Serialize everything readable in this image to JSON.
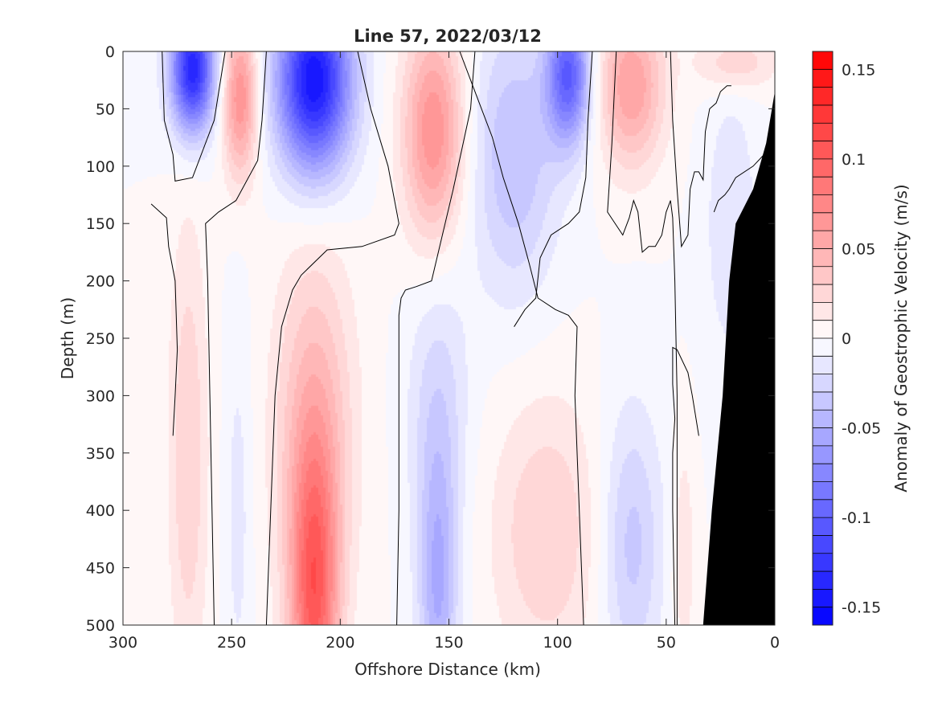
{
  "chart_data": {
    "type": "heatmap",
    "title": "Line 57, 2022/03/12",
    "xlabel": "Offshore Distance (km)",
    "ylabel": "Depth (m)",
    "colorbar_label": "Anomaly of Geostrophic Velocity (m/s)",
    "xlim": [
      300,
      0
    ],
    "ylim": [
      0,
      500
    ],
    "clim": [
      -0.16,
      0.16
    ],
    "x_ticks": [
      300,
      250,
      200,
      150,
      100,
      50,
      0
    ],
    "y_ticks": [
      0,
      50,
      100,
      150,
      200,
      250,
      300,
      350,
      400,
      450,
      500
    ],
    "colorbar_ticks": [
      0.15,
      0.1,
      0.05,
      0,
      -0.05,
      -0.1,
      -0.15
    ],
    "colorbar_tick_labels": [
      "0.15",
      "0.1",
      "0.05",
      "0",
      "-0.05",
      "-0.1",
      "-0.15"
    ],
    "colormap": {
      "negative": "#0000ff",
      "zero": "#ffffff",
      "positive": "#ff0000"
    },
    "bathymetry_color": "#000000",
    "cores": [
      {
        "x": 268,
        "depth": 15,
        "amp": -0.14,
        "hw": 10,
        "vd": 55
      },
      {
        "x": 246,
        "depth": 40,
        "amp": 0.07,
        "hw": 8,
        "vd": 70
      },
      {
        "x": 212,
        "depth": 25,
        "amp": -0.15,
        "hw": 17,
        "vd": 80
      },
      {
        "x": 157,
        "depth": 70,
        "amp": 0.07,
        "hw": 14,
        "vd": 95
      },
      {
        "x": 95,
        "depth": 20,
        "amp": -0.1,
        "hw": 10,
        "vd": 60
      },
      {
        "x": 120,
        "depth": 90,
        "amp": -0.04,
        "hw": 20,
        "vd": 120
      },
      {
        "x": 66,
        "depth": 30,
        "amp": 0.06,
        "hw": 15,
        "vd": 70
      },
      {
        "x": 18,
        "depth": 10,
        "amp": 0.03,
        "hw": 18,
        "vd": 25
      },
      {
        "x": 20,
        "depth": 150,
        "amp": -0.02,
        "hw": 12,
        "vd": 120
      },
      {
        "x": 212,
        "depth": 480,
        "amp": 0.09,
        "hw": 11,
        "vd": 130
      },
      {
        "x": 212,
        "depth": 330,
        "amp": 0.045,
        "hw": 18,
        "vd": 160
      },
      {
        "x": 155,
        "depth": 470,
        "amp": -0.05,
        "hw": 9,
        "vd": 120
      },
      {
        "x": 155,
        "depth": 310,
        "amp": -0.025,
        "hw": 14,
        "vd": 120
      },
      {
        "x": 270,
        "depth": 350,
        "amp": 0.03,
        "hw": 9,
        "vd": 200
      },
      {
        "x": 247,
        "depth": 400,
        "amp": -0.015,
        "hw": 6,
        "vd": 160
      },
      {
        "x": 105,
        "depth": 420,
        "amp": 0.03,
        "hw": 25,
        "vd": 120
      },
      {
        "x": 66,
        "depth": 430,
        "amp": -0.035,
        "hw": 14,
        "vd": 120
      },
      {
        "x": 42,
        "depth": 440,
        "amp": 0.02,
        "hw": 5,
        "vd": 100
      }
    ],
    "bathymetry_outline": [
      [
        33,
        500
      ],
      [
        29,
        400
      ],
      [
        24,
        300
      ],
      [
        21,
        200
      ],
      [
        18,
        150
      ],
      [
        10,
        120
      ],
      [
        4,
        80
      ],
      [
        0,
        35
      ],
      [
        0,
        500
      ]
    ],
    "zero_contours": [
      [
        [
          282,
          0
        ],
        [
          281,
          60
        ],
        [
          277,
          90
        ],
        [
          276,
          113
        ],
        [
          268,
          110
        ],
        [
          258,
          60
        ],
        [
          253,
          0
        ]
      ],
      [
        [
          287,
          133
        ],
        [
          280,
          145
        ],
        [
          279,
          170
        ],
        [
          276,
          200
        ],
        [
          275,
          260
        ],
        [
          276,
          300
        ],
        [
          277,
          335
        ]
      ],
      [
        [
          234,
          0
        ],
        [
          236,
          60
        ],
        [
          238,
          95
        ],
        [
          248,
          130
        ],
        [
          256,
          140
        ],
        [
          262,
          150
        ],
        [
          261,
          200
        ],
        [
          260,
          300
        ],
        [
          259,
          400
        ],
        [
          258,
          500
        ]
      ],
      [
        [
          192,
          0
        ],
        [
          186,
          50
        ],
        [
          178,
          100
        ],
        [
          173,
          150
        ],
        [
          175,
          160
        ],
        [
          190,
          170
        ],
        [
          206,
          173
        ],
        [
          218,
          195
        ],
        [
          222,
          208
        ],
        [
          227,
          240
        ],
        [
          230,
          300
        ],
        [
          232,
          400
        ],
        [
          234,
          500
        ]
      ],
      [
        [
          145,
          0
        ],
        [
          137,
          40
        ],
        [
          130,
          75
        ],
        [
          125,
          110
        ],
        [
          118,
          150
        ],
        [
          113,
          185
        ],
        [
          109,
          215
        ],
        [
          101,
          225
        ],
        [
          95,
          230
        ],
        [
          91,
          240
        ],
        [
          92,
          300
        ],
        [
          90,
          400
        ],
        [
          88,
          500
        ]
      ],
      [
        [
          138,
          0
        ],
        [
          140,
          50
        ],
        [
          148,
          120
        ],
        [
          158,
          200
        ],
        [
          165,
          205
        ],
        [
          170,
          208
        ],
        [
          172,
          215
        ],
        [
          173,
          230
        ],
        [
          173,
          400
        ],
        [
          174,
          500
        ]
      ],
      [
        [
          120,
          240
        ],
        [
          115,
          225
        ],
        [
          110,
          215
        ],
        [
          108,
          180
        ],
        [
          103,
          160
        ],
        [
          95,
          150
        ],
        [
          90,
          140
        ],
        [
          87,
          110
        ],
        [
          86,
          60
        ],
        [
          84,
          0
        ]
      ],
      [
        [
          48,
          0
        ],
        [
          47,
          60
        ],
        [
          45,
          120
        ],
        [
          43,
          170
        ],
        [
          40,
          160
        ],
        [
          39,
          120
        ],
        [
          37,
          105
        ],
        [
          35,
          105
        ],
        [
          33,
          112
        ],
        [
          32,
          70
        ],
        [
          30,
          50
        ],
        [
          27,
          45
        ],
        [
          25,
          35
        ],
        [
          22,
          30
        ],
        [
          20,
          30
        ]
      ],
      [
        [
          5,
          90
        ],
        [
          10,
          100
        ],
        [
          18,
          110
        ],
        [
          21,
          120
        ],
        [
          23,
          125
        ],
        [
          26,
          130
        ],
        [
          28,
          140
        ]
      ],
      [
        [
          73,
          0
        ],
        [
          75,
          80
        ],
        [
          77,
          140
        ],
        [
          70,
          160
        ],
        [
          67,
          145
        ],
        [
          65,
          130
        ],
        [
          63,
          140
        ],
        [
          61,
          175
        ],
        [
          58,
          170
        ],
        [
          55,
          170
        ],
        [
          52,
          160
        ],
        [
          50,
          140
        ],
        [
          48,
          130
        ],
        [
          47,
          145
        ],
        [
          46,
          200
        ],
        [
          45,
          300
        ],
        [
          45,
          400
        ],
        [
          45,
          500
        ]
      ],
      [
        [
          35,
          335
        ],
        [
          38,
          300
        ],
        [
          40,
          280
        ],
        [
          45,
          260
        ],
        [
          47,
          258
        ],
        [
          47,
          290
        ],
        [
          46,
          320
        ],
        [
          47,
          350
        ],
        [
          47,
          400
        ],
        [
          46,
          500
        ]
      ]
    ]
  }
}
